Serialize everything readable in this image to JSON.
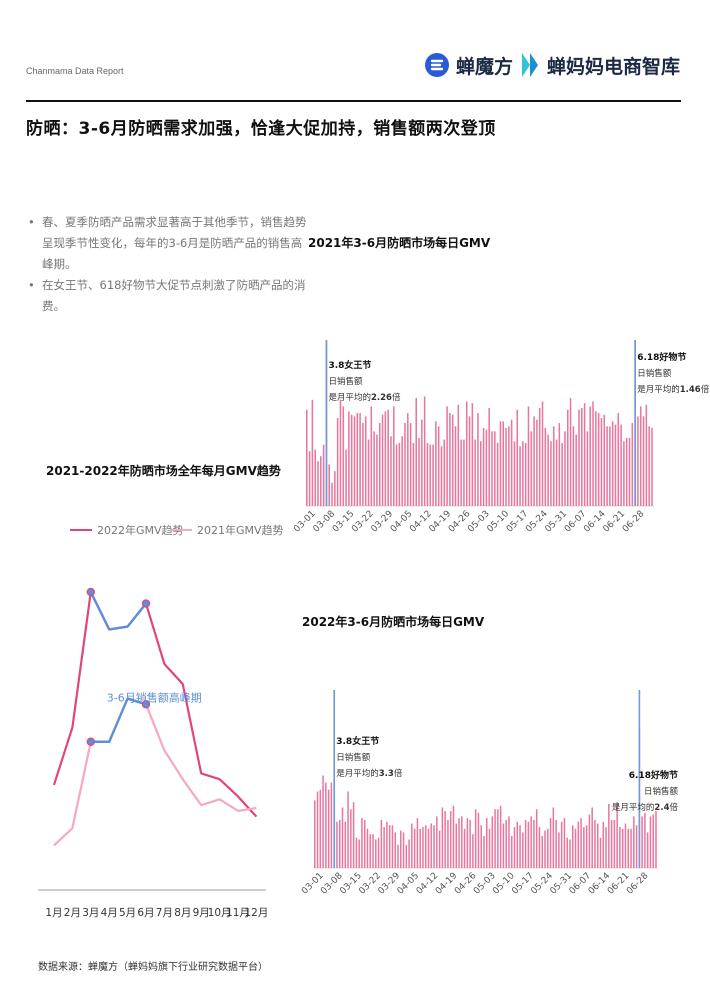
{
  "header": {
    "brand_text": "Chanmama Data Report",
    "logo1_text": "蝉魔方",
    "logo2_text": "蝉妈妈电商智库",
    "title": "防晒：3-6月防晒需求加强，恰逢大促加持，销售额两次登顶"
  },
  "bullets": [
    "春、夏季防晒产品需求显著高于其他季节，销售趋势呈现季节性变化，每年的3-6月是防晒产品的销售高峰期。",
    "在女王节、618好物节大促节点刺激了防晒产品的消费。"
  ],
  "source": "数据来源：蝉魔方（蝉妈妈旗下行业研究数据平台）",
  "colors": {
    "series_2022": "#e2457b",
    "series_2021": "#f7a6c4",
    "highlight": "#5b8fd6",
    "daily_bar": "#e8779f",
    "event_line": "#6c9dd8"
  },
  "chart_data": [
    {
      "type": "line",
      "title": "2021-2022年防晒市场全年每月GMV趋势",
      "categories": [
        "1月",
        "2月",
        "3月",
        "4月",
        "5月",
        "6月",
        "7月",
        "8月",
        "9月",
        "10月",
        "11月",
        "12月"
      ],
      "series": [
        {
          "name": "2022年GMV趋势",
          "values": [
            33,
            53,
            100,
            87,
            88,
            96,
            75,
            68,
            37,
            35,
            29,
            22
          ]
        },
        {
          "name": "2021年GMV趋势",
          "values": [
            12,
            18,
            48,
            48,
            63,
            61,
            45,
            35,
            26,
            28,
            24,
            25
          ]
        }
      ],
      "ylim": [
        0,
        100
      ],
      "annotation": "3-6月销售额高峰期",
      "highlight_months": [
        "3月",
        "6月"
      ]
    },
    {
      "type": "bar",
      "title": "2021年3-6月防晒市场每日GMV",
      "x_ticks": [
        "03-01",
        "03-08",
        "03-15",
        "03-22",
        "03-29",
        "04-05",
        "04-12",
        "04-19",
        "04-26",
        "05-03",
        "05-10",
        "05-17",
        "05-24",
        "05-31",
        "06-07",
        "06-14",
        "06-21",
        "06-28"
      ],
      "values": [
        58,
        33,
        64,
        34,
        27,
        30,
        37,
        100,
        25,
        14,
        21,
        53,
        64,
        60,
        34,
        57,
        55,
        54,
        56,
        56,
        50,
        54,
        40,
        60,
        45,
        43,
        50,
        55,
        57,
        58,
        42,
        60,
        37,
        38,
        42,
        50,
        56,
        50,
        38,
        65,
        41,
        52,
        66,
        38,
        37,
        37,
        51,
        48,
        36,
        40,
        60,
        56,
        55,
        48,
        61,
        40,
        40,
        63,
        54,
        62,
        40,
        56,
        39,
        47,
        46,
        59,
        45,
        45,
        38,
        51,
        51,
        47,
        48,
        52,
        39,
        58,
        36,
        39,
        38,
        60,
        45,
        54,
        52,
        59,
        63,
        47,
        43,
        39,
        48,
        40,
        50,
        38,
        45,
        58,
        65,
        48,
        43,
        58,
        59,
        62,
        45,
        60,
        63,
        57,
        56,
        53,
        55,
        48,
        48,
        51,
        49,
        56,
        49,
        39,
        41,
        41,
        50,
        100,
        54,
        60,
        54,
        61,
        48,
        47
      ],
      "events": [
        {
          "day_index": 7,
          "label": "3.8女王节",
          "line1": "日销售额",
          "prefix": "是月平均的",
          "value": "2.26",
          "suffix": "倍"
        },
        {
          "day_index": 117,
          "label": "6.18好物节",
          "line1": "日销售额",
          "prefix": "是月平均的",
          "value": "1.46",
          "suffix": "倍"
        }
      ]
    },
    {
      "type": "bar",
      "title": "2022年3-6月防晒市场每日GMV",
      "x_ticks": [
        "03-01",
        "03-08",
        "03-15",
        "03-22",
        "03-29",
        "04-05",
        "04-12",
        "04-19",
        "04-26",
        "05-03",
        "05-10",
        "05-17",
        "05-24",
        "05-31",
        "06-07",
        "06-14",
        "06-21",
        "06-28"
      ],
      "values": [
        38,
        43,
        44,
        52,
        48,
        44,
        48,
        100,
        26,
        27,
        34,
        26,
        43,
        33,
        37,
        17,
        16,
        28,
        27,
        22,
        19,
        19,
        16,
        17,
        27,
        23,
        26,
        24,
        24,
        20,
        13,
        21,
        20,
        13,
        16,
        25,
        22,
        28,
        22,
        23,
        24,
        22,
        25,
        24,
        29,
        21,
        34,
        32,
        27,
        32,
        35,
        25,
        28,
        29,
        22,
        28,
        27,
        19,
        33,
        31,
        24,
        18,
        28,
        22,
        29,
        33,
        33,
        35,
        25,
        27,
        29,
        18,
        23,
        26,
        24,
        20,
        27,
        26,
        29,
        27,
        33,
        23,
        18,
        21,
        22,
        28,
        34,
        27,
        20,
        26,
        28,
        17,
        16,
        24,
        22,
        26,
        28,
        23,
        24,
        30,
        34,
        27,
        25,
        17,
        26,
        23,
        36,
        27,
        27,
        37,
        23,
        22,
        25,
        22,
        22,
        29,
        24,
        78,
        29,
        31,
        20,
        29,
        30,
        32
      ],
      "events": [
        {
          "day_index": 7,
          "label": "3.8女王节",
          "line1": "日销售额",
          "prefix": "是月平均的",
          "value": "3.3",
          "suffix": "倍"
        },
        {
          "day_index": 117,
          "label": "6.18好物节",
          "line1": "日销售额",
          "prefix": "是月平均的",
          "value": "2.4",
          "suffix": "倍"
        }
      ]
    }
  ]
}
